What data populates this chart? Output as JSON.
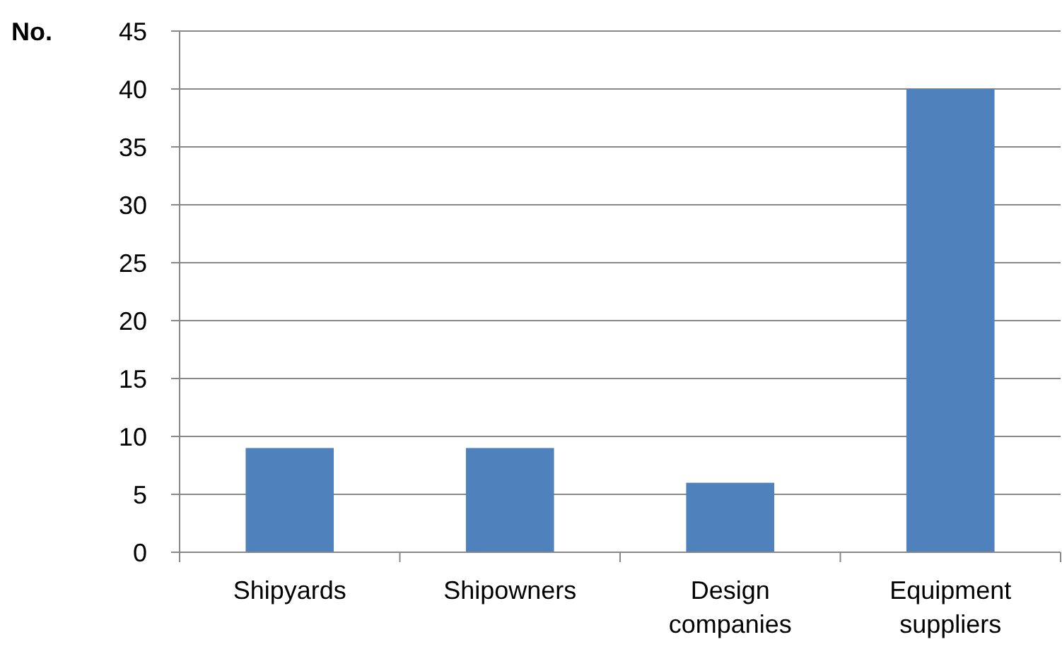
{
  "chart_data": {
    "type": "bar",
    "ylabel": "No.",
    "categories": [
      "Shipyards",
      "Shipowners",
      "Design companies",
      "Equipment suppliers"
    ],
    "values": [
      9,
      9,
      6,
      40
    ],
    "color": "#4f81bd",
    "ylim": [
      0,
      45
    ],
    "yticks": [
      0,
      5,
      10,
      15,
      20,
      25,
      30,
      35,
      40,
      45
    ],
    "grid": "y"
  }
}
